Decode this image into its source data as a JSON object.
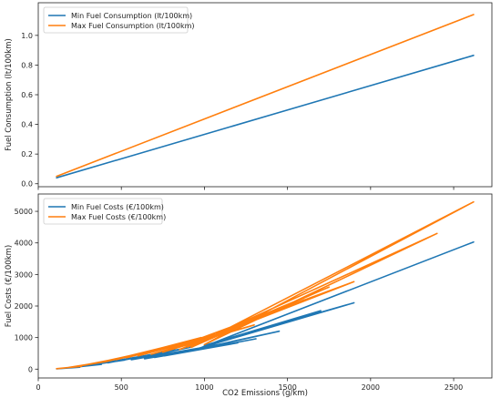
{
  "chart_data": [
    {
      "type": "line",
      "xlabel": "",
      "ylabel": "Fuel Consumption (lt/100km)",
      "xlim": [
        0,
        2730
      ],
      "ylim": [
        -0.02,
        1.22
      ],
      "xticks": [
        0,
        500,
        1000,
        1500,
        2000,
        2500
      ],
      "yticks": [
        0.0,
        0.2,
        0.4,
        0.6,
        0.8,
        1.0
      ],
      "ytick_labels": [
        "0.0",
        "0.2",
        "0.4",
        "0.6",
        "0.8",
        "1.0"
      ],
      "show_xtick_labels": false,
      "legend": "top-left",
      "series": [
        {
          "name": "Min Fuel Consumption (lt/100km)",
          "color": "#1f77b4",
          "x": [
            110,
            2620
          ],
          "y": [
            0.04,
            0.865
          ]
        },
        {
          "name": "Max Fuel Consumption (lt/100km)",
          "color": "#ff7f0e",
          "x": [
            110,
            2620
          ],
          "y": [
            0.05,
            1.14
          ]
        }
      ]
    },
    {
      "type": "line",
      "xlabel": "CO2 Emissions (g/km)",
      "ylabel": "Fuel Costs (€/100km)",
      "xlim": [
        0,
        2730
      ],
      "ylim": [
        -280,
        5550
      ],
      "xticks": [
        0,
        500,
        1000,
        1500,
        2000,
        2500
      ],
      "xtick_labels": [
        "0",
        "500",
        "1000",
        "1500",
        "2000",
        "2500"
      ],
      "yticks": [
        0,
        1000,
        2000,
        3000,
        4000,
        5000
      ],
      "ytick_labels": [
        "0",
        "1000",
        "2000",
        "3000",
        "4000",
        "5000"
      ],
      "legend": "top-left",
      "series": [
        {
          "name": "Min Fuel Costs (€/100km)",
          "color": "#1f77b4",
          "x": [
            110,
            250,
            180,
            380,
            260,
            520,
            330,
            700,
            420,
            820,
            500,
            930,
            560,
            1050,
            640,
            1150,
            700,
            1200,
            760,
            1310,
            820,
            1450,
            900,
            1900,
            1000,
            1700,
            950,
            2620
          ],
          "y": [
            10,
            60,
            40,
            150,
            90,
            290,
            140,
            480,
            200,
            610,
            270,
            710,
            300,
            740,
            330,
            790,
            370,
            830,
            420,
            960,
            480,
            1200,
            560,
            2100,
            750,
            1850,
            620,
            4030
          ]
        },
        {
          "name": "Max Fuel Costs (€/100km)",
          "color": "#ff7f0e",
          "x": [
            110,
            260,
            180,
            420,
            250,
            580,
            330,
            760,
            400,
            880,
            470,
            980,
            530,
            1100,
            600,
            1200,
            680,
            1300,
            750,
            1900,
            850,
            1750,
            920,
            2620,
            1000,
            2400,
            900,
            1600
          ],
          "y": [
            15,
            90,
            50,
            250,
            100,
            440,
            170,
            670,
            230,
            850,
            300,
            1000,
            360,
            1150,
            420,
            1250,
            470,
            1400,
            540,
            2770,
            620,
            2600,
            690,
            5300,
            780,
            4300,
            700,
            2200
          ]
        }
      ]
    }
  ]
}
